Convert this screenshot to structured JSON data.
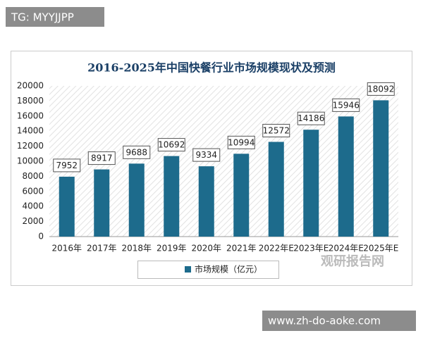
{
  "badge": "TG: MYYJJPP",
  "footer_url": "www.zh-do-aoke.com",
  "watermark": "观研报告网",
  "chart_data": {
    "type": "bar",
    "title": "2016-2025年中国快餐行业市场规模现状及预测",
    "categories": [
      "2016年",
      "2017年",
      "2018年",
      "2019年",
      "2020年",
      "2021年",
      "2022年E",
      "2023年E",
      "2024年E",
      "2025年E"
    ],
    "series": [
      {
        "name": "市场规模（亿元）",
        "color": "#1d6b8c",
        "values": [
          7952,
          8917,
          9688,
          10692,
          9334,
          10994,
          12572,
          14186,
          15946,
          18092
        ]
      }
    ],
    "ylim": [
      0,
      20000
    ],
    "yticks": [
      0,
      2000,
      4000,
      6000,
      8000,
      10000,
      12000,
      14000,
      16000,
      18000,
      20000
    ],
    "grid": false
  }
}
